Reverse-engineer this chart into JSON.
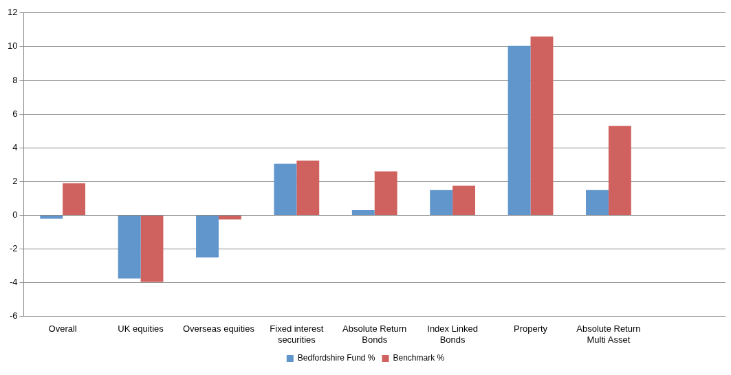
{
  "chart_data": {
    "type": "bar",
    "categories": [
      "Overall",
      "UK equities",
      "Overseas equities",
      "Fixed interest securities",
      "Absolute Return Bonds",
      "Index Linked Bonds",
      "Property",
      "Absolute Return Multi Asset",
      null
    ],
    "series": [
      {
        "name": "Bedfordshire Fund %",
        "color": "#6096cc",
        "values": [
          -0.2,
          -3.75,
          -2.5,
          3.05,
          0.3,
          1.5,
          10.05,
          1.5,
          null
        ]
      },
      {
        "name": "Benchmark %",
        "color": "#cf625e",
        "values": [
          1.9,
          -3.95,
          -0.25,
          3.25,
          2.6,
          1.75,
          10.6,
          5.3,
          null
        ]
      }
    ],
    "ylim": [
      -6,
      12
    ],
    "yticks": [
      -6,
      -4,
      -2,
      0,
      2,
      4,
      6,
      8,
      10,
      12
    ],
    "grid": "y",
    "legend": "bottom"
  }
}
